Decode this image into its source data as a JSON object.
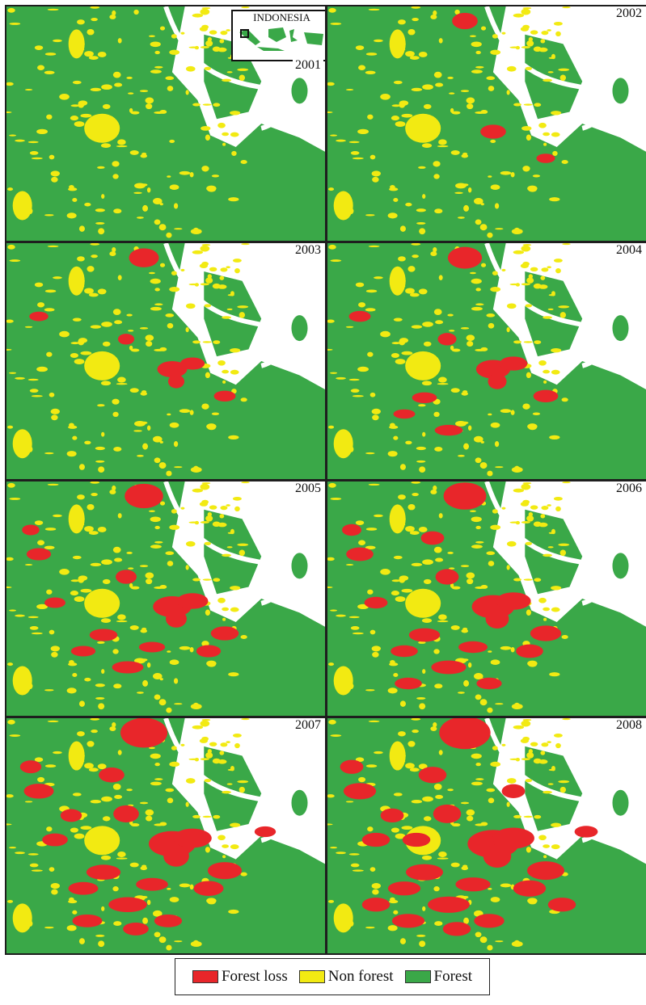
{
  "inset": {
    "country": "INDONESIA"
  },
  "panels": [
    {
      "year": "2001",
      "loss_level": 0
    },
    {
      "year": "2002",
      "loss_level": 1
    },
    {
      "year": "2003",
      "loss_level": 2
    },
    {
      "year": "2004",
      "loss_level": 3
    },
    {
      "year": "2005",
      "loss_level": 4
    },
    {
      "year": "2006",
      "loss_level": 5
    },
    {
      "year": "2007",
      "loss_level": 6
    },
    {
      "year": "2008",
      "loss_level": 7
    }
  ],
  "legend": {
    "items": [
      {
        "label": "Forest loss",
        "color": "#e8262a"
      },
      {
        "label": "Non forest",
        "color": "#f2ea12"
      },
      {
        "label": "Forest",
        "color": "#3aa848"
      }
    ]
  },
  "colors": {
    "forest": "#3aa848",
    "non_forest": "#f2ea12",
    "forest_loss": "#e8262a",
    "water": "#ffffff"
  }
}
